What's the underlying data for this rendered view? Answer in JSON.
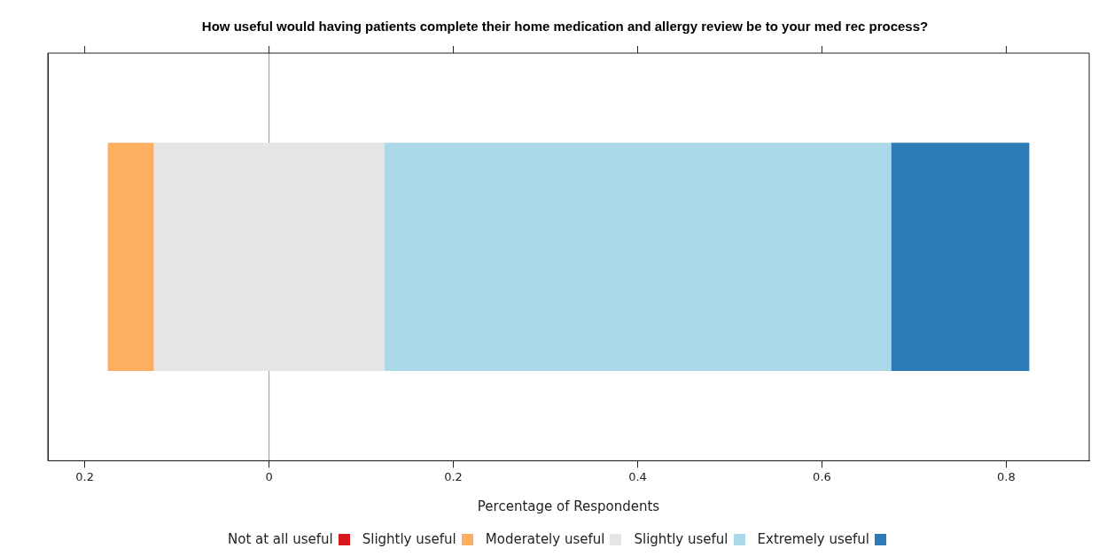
{
  "chart_data": {
    "type": "bar",
    "orientation": "horizontal",
    "title": "How useful would having patients complete their home medication and allergy review be to your med rec process?",
    "xlabel": "Percentage of Respondents",
    "categories": [
      null
    ],
    "series": [
      {
        "name": "Not at all useful",
        "color": "#d7191c",
        "values": [
          0
        ]
      },
      {
        "name": "Slightly useful",
        "color": "#fdae61",
        "values": [
          0.05
        ],
        "base": [
          -0.175
        ]
      },
      {
        "name": "Moderately useful",
        "color": "#e5e5e5",
        "values": [
          0.25
        ],
        "base": [
          -0.125
        ]
      },
      {
        "name": "Slightly useful",
        "color": "#abd9e9",
        "values": [
          0.55
        ],
        "base": [
          0.125
        ]
      },
      {
        "name": "Extremely useful",
        "color": "#2c7bb6",
        "values": [
          0.15
        ],
        "base": [
          0.675
        ]
      }
    ],
    "xlim": [
      -0.24,
      0.89
    ],
    "xticks": [
      {
        "value": -0.2,
        "label": "0.2"
      },
      0,
      0.2,
      0.4,
      0.6,
      0.8
    ],
    "ref_lines": [
      {
        "axis": "x",
        "value": 0,
        "color": "#999999"
      }
    ],
    "grid": false,
    "legend": "bottom"
  }
}
